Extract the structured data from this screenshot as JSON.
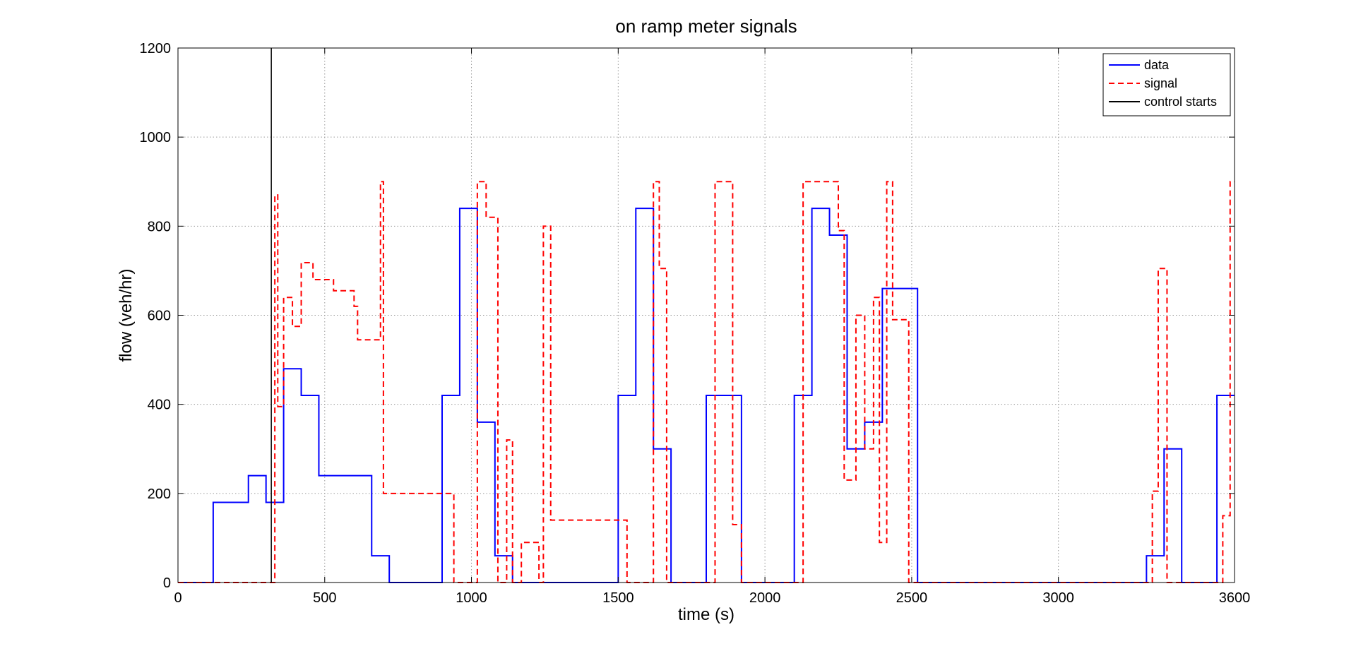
{
  "chart_data": {
    "type": "line",
    "title": "on ramp meter signals",
    "xlabel": "time (s)",
    "ylabel": "flow (veh/hr)",
    "xlim": [
      0,
      3600
    ],
    "ylim": [
      0,
      1200
    ],
    "xticks": [
      0,
      500,
      1000,
      1500,
      2000,
      2500,
      3000,
      3600
    ],
    "yticks": [
      0,
      200,
      400,
      600,
      800,
      1000,
      1200
    ],
    "grid": true,
    "legend_position": "top-right",
    "step": true,
    "series": [
      {
        "name": "data",
        "color": "#0000ff",
        "style": "solid",
        "x": [
          0,
          120,
          240,
          300,
          360,
          420,
          480,
          540,
          600,
          660,
          720,
          780,
          840,
          900,
          960,
          1020,
          1080,
          1140,
          1200,
          1260,
          1320,
          1380,
          1440,
          1500,
          1560,
          1620,
          1680,
          1740,
          1800,
          1860,
          1920,
          1980,
          2040,
          2100,
          2160,
          2220,
          2280,
          2340,
          2400,
          2460,
          2520,
          3300,
          3360,
          3420,
          3540,
          3600
        ],
        "y": [
          0,
          180,
          240,
          180,
          480,
          420,
          240,
          240,
          240,
          60,
          0,
          0,
          0,
          420,
          840,
          360,
          60,
          0,
          0,
          0,
          0,
          0,
          0,
          420,
          840,
          300,
          0,
          0,
          420,
          420,
          0,
          0,
          0,
          420,
          840,
          780,
          300,
          360,
          660,
          660,
          0,
          60,
          300,
          0,
          420,
          420
        ]
      },
      {
        "name": "signal",
        "color": "#ff0000",
        "style": "dashed",
        "x": [
          0,
          330,
          340,
          360,
          390,
          420,
          460,
          500,
          530,
          600,
          612,
          690,
          700,
          940,
          1020,
          1050,
          1090,
          1120,
          1140,
          1170,
          1230,
          1245,
          1270,
          1530,
          1620,
          1640,
          1665,
          1830,
          1890,
          1920,
          1935,
          2130,
          2250,
          2270,
          2310,
          2340,
          2370,
          2390,
          2415,
          2425,
          2435,
          2490,
          2500,
          2520,
          3320,
          3340,
          3370,
          3390,
          3530,
          3560,
          3585,
          3600
        ],
        "y": [
          0,
          870,
          395,
          640,
          575,
          718,
          680,
          680,
          655,
          620,
          545,
          900,
          200,
          0,
          900,
          820,
          0,
          320,
          0,
          90,
          0,
          800,
          140,
          0,
          900,
          705,
          0,
          900,
          130,
          0,
          0,
          900,
          790,
          230,
          600,
          300,
          640,
          90,
          900,
          900,
          590,
          0,
          0,
          0,
          205,
          705,
          0,
          0,
          0,
          150,
          900,
          900
        ]
      },
      {
        "name": "control starts",
        "color": "#000000",
        "style": "solid",
        "x": [
          318,
          318
        ],
        "y": [
          0,
          1200
        ]
      }
    ]
  }
}
